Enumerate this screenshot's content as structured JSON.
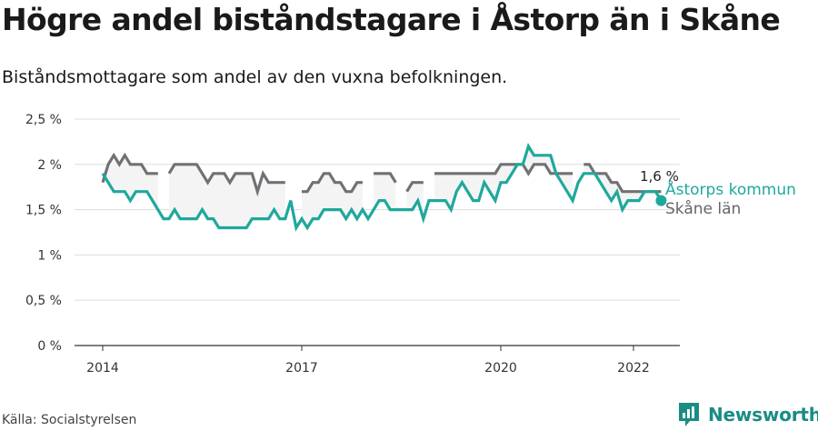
{
  "title": "Högre andel biståndstagare i Åstorp än i Skåne",
  "subtitle": "Biståndsmottagare som andel av den vuxna befolkningen.",
  "source": "Källa: Socialstyrelsen",
  "brand": "Newsworthy",
  "colors": {
    "astorp": "#1fa89c",
    "skane": "#717175",
    "band": "#eeeeee",
    "grid": "#dddddd",
    "brand": "#1a8c85"
  },
  "chart_data": {
    "type": "line",
    "title": "Högre andel biståndstagare i Åstorp än i Skåne",
    "subtitle": "Biståndsmottagare som andel av den vuxna befolkningen.",
    "ylim": [
      0,
      2.5
    ],
    "yticks": [
      0,
      0.5,
      1,
      1.5,
      2,
      2.5
    ],
    "ytick_labels": [
      "0 %",
      "0,5 %",
      "1 %",
      "1,5 %",
      "2 %",
      "2,5 %"
    ],
    "xticks": [
      "2014-01",
      "2017-01",
      "2020-01",
      "2022-01"
    ],
    "xtick_labels": [
      "2014",
      "2017",
      "2020",
      "2022"
    ],
    "last_value_label": "1,6 %",
    "grid": true,
    "legend": "direct labels at line ends",
    "series": [
      {
        "name": "Åstorps kommun",
        "points": [
          [
            "2014-01",
            1.9
          ],
          [
            "2014-02",
            1.8
          ],
          [
            "2014-03",
            1.7
          ],
          [
            "2014-04",
            1.7
          ],
          [
            "2014-05",
            1.7
          ],
          [
            "2014-06",
            1.6
          ],
          [
            "2014-07",
            1.7
          ],
          [
            "2014-08",
            1.7
          ],
          [
            "2014-09",
            1.7
          ],
          [
            "2014-10",
            1.6
          ],
          [
            "2014-11",
            1.5
          ],
          [
            "2014-12",
            1.4
          ],
          [
            "2015-01",
            1.4
          ],
          [
            "2015-02",
            1.5
          ],
          [
            "2015-03",
            1.4
          ],
          [
            "2015-04",
            1.4
          ],
          [
            "2015-05",
            1.4
          ],
          [
            "2015-06",
            1.4
          ],
          [
            "2015-07",
            1.5
          ],
          [
            "2015-08",
            1.4
          ],
          [
            "2015-09",
            1.4
          ],
          [
            "2015-10",
            1.3
          ],
          [
            "2015-11",
            1.3
          ],
          [
            "2015-12",
            1.3
          ],
          [
            "2016-01",
            1.3
          ],
          [
            "2016-02",
            1.3
          ],
          [
            "2016-03",
            1.3
          ],
          [
            "2016-04",
            1.4
          ],
          [
            "2016-05",
            1.4
          ],
          [
            "2016-06",
            1.4
          ],
          [
            "2016-07",
            1.4
          ],
          [
            "2016-08",
            1.5
          ],
          [
            "2016-09",
            1.4
          ],
          [
            "2016-10",
            1.4
          ],
          [
            "2016-11",
            1.6
          ],
          [
            "2016-12",
            1.3
          ],
          [
            "2017-01",
            1.4
          ],
          [
            "2017-02",
            1.3
          ],
          [
            "2017-03",
            1.4
          ],
          [
            "2017-04",
            1.4
          ],
          [
            "2017-05",
            1.5
          ],
          [
            "2017-06",
            1.5
          ],
          [
            "2017-07",
            1.5
          ],
          [
            "2017-08",
            1.5
          ],
          [
            "2017-09",
            1.4
          ],
          [
            "2017-10",
            1.5
          ],
          [
            "2017-11",
            1.4
          ],
          [
            "2017-12",
            1.5
          ],
          [
            "2018-01",
            1.4
          ],
          [
            "2018-02",
            1.5
          ],
          [
            "2018-03",
            1.6
          ],
          [
            "2018-04",
            1.6
          ],
          [
            "2018-05",
            1.5
          ],
          [
            "2018-06",
            1.5
          ],
          [
            "2018-07",
            1.5
          ],
          [
            "2018-08",
            1.5
          ],
          [
            "2018-09",
            1.5
          ],
          [
            "2018-10",
            1.6
          ],
          [
            "2018-11",
            1.4
          ],
          [
            "2018-12",
            1.6
          ],
          [
            "2019-01",
            1.6
          ],
          [
            "2019-02",
            1.6
          ],
          [
            "2019-03",
            1.6
          ],
          [
            "2019-04",
            1.5
          ],
          [
            "2019-05",
            1.7
          ],
          [
            "2019-06",
            1.8
          ],
          [
            "2019-07",
            1.7
          ],
          [
            "2019-08",
            1.6
          ],
          [
            "2019-09",
            1.6
          ],
          [
            "2019-10",
            1.8
          ],
          [
            "2019-11",
            1.7
          ],
          [
            "2019-12",
            1.6
          ],
          [
            "2020-01",
            1.8
          ],
          [
            "2020-02",
            1.8
          ],
          [
            "2020-03",
            1.9
          ],
          [
            "2020-04",
            2.0
          ],
          [
            "2020-05",
            2.0
          ],
          [
            "2020-06",
            2.2
          ],
          [
            "2020-07",
            2.1
          ],
          [
            "2020-08",
            2.1
          ],
          [
            "2020-09",
            2.1
          ],
          [
            "2020-10",
            2.1
          ],
          [
            "2020-11",
            1.9
          ],
          [
            "2020-12",
            1.8
          ],
          [
            "2021-01",
            1.7
          ],
          [
            "2021-02",
            1.6
          ],
          [
            "2021-03",
            1.8
          ],
          [
            "2021-04",
            1.9
          ],
          [
            "2021-05",
            1.9
          ],
          [
            "2021-06",
            1.9
          ],
          [
            "2021-07",
            1.8
          ],
          [
            "2021-08",
            1.7
          ],
          [
            "2021-09",
            1.6
          ],
          [
            "2021-10",
            1.7
          ],
          [
            "2021-11",
            1.5
          ],
          [
            "2021-12",
            1.6
          ],
          [
            "2022-01",
            1.6
          ],
          [
            "2022-02",
            1.6
          ],
          [
            "2022-03",
            1.7
          ],
          [
            "2022-04",
            1.7
          ],
          [
            "2022-05",
            1.7
          ],
          [
            "2022-06",
            1.6
          ]
        ]
      },
      {
        "name": "Skåne län",
        "points": [
          [
            "2014-01",
            1.8
          ],
          [
            "2014-02",
            2.0
          ],
          [
            "2014-03",
            2.1
          ],
          [
            "2014-04",
            2.0
          ],
          [
            "2014-05",
            2.1
          ],
          [
            "2014-06",
            2.0
          ],
          [
            "2014-07",
            2.0
          ],
          [
            "2014-08",
            2.0
          ],
          [
            "2014-09",
            1.9
          ],
          [
            "2014-10",
            1.9
          ],
          [
            "2014-11",
            1.9
          ],
          [
            "2014-12",
            null
          ],
          [
            "2015-01",
            1.9
          ],
          [
            "2015-02",
            2.0
          ],
          [
            "2015-03",
            2.0
          ],
          [
            "2015-04",
            2.0
          ],
          [
            "2015-05",
            2.0
          ],
          [
            "2015-06",
            2.0
          ],
          [
            "2015-07",
            1.9
          ],
          [
            "2015-08",
            1.8
          ],
          [
            "2015-09",
            1.9
          ],
          [
            "2015-10",
            1.9
          ],
          [
            "2015-11",
            1.9
          ],
          [
            "2015-12",
            1.8
          ],
          [
            "2016-01",
            1.9
          ],
          [
            "2016-02",
            1.9
          ],
          [
            "2016-03",
            1.9
          ],
          [
            "2016-04",
            1.9
          ],
          [
            "2016-05",
            1.7
          ],
          [
            "2016-06",
            1.9
          ],
          [
            "2016-07",
            1.8
          ],
          [
            "2016-08",
            1.8
          ],
          [
            "2016-09",
            1.8
          ],
          [
            "2016-10",
            1.8
          ],
          [
            "2016-11",
            null
          ],
          [
            "2016-12",
            null
          ],
          [
            "2017-01",
            1.7
          ],
          [
            "2017-02",
            1.7
          ],
          [
            "2017-03",
            1.8
          ],
          [
            "2017-04",
            1.8
          ],
          [
            "2017-05",
            1.9
          ],
          [
            "2017-06",
            1.9
          ],
          [
            "2017-07",
            1.8
          ],
          [
            "2017-08",
            1.8
          ],
          [
            "2017-09",
            1.7
          ],
          [
            "2017-10",
            1.7
          ],
          [
            "2017-11",
            1.8
          ],
          [
            "2017-12",
            1.8
          ],
          [
            "2018-01",
            null
          ],
          [
            "2018-02",
            1.9
          ],
          [
            "2018-03",
            1.9
          ],
          [
            "2018-04",
            1.9
          ],
          [
            "2018-05",
            1.9
          ],
          [
            "2018-06",
            1.8
          ],
          [
            "2018-07",
            null
          ],
          [
            "2018-08",
            1.7
          ],
          [
            "2018-09",
            1.8
          ],
          [
            "2018-10",
            1.8
          ],
          [
            "2018-11",
            1.8
          ],
          [
            "2018-12",
            null
          ],
          [
            "2019-01",
            1.9
          ],
          [
            "2019-02",
            1.9
          ],
          [
            "2019-03",
            1.9
          ],
          [
            "2019-04",
            1.9
          ],
          [
            "2019-05",
            1.9
          ],
          [
            "2019-06",
            1.9
          ],
          [
            "2019-07",
            1.9
          ],
          [
            "2019-08",
            1.9
          ],
          [
            "2019-09",
            1.9
          ],
          [
            "2019-10",
            1.9
          ],
          [
            "2019-11",
            1.9
          ],
          [
            "2019-12",
            1.9
          ],
          [
            "2020-01",
            2.0
          ],
          [
            "2020-02",
            2.0
          ],
          [
            "2020-03",
            2.0
          ],
          [
            "2020-04",
            2.0
          ],
          [
            "2020-05",
            2.0
          ],
          [
            "2020-06",
            1.9
          ],
          [
            "2020-07",
            2.0
          ],
          [
            "2020-08",
            2.0
          ],
          [
            "2020-09",
            2.0
          ],
          [
            "2020-10",
            1.9
          ],
          [
            "2020-11",
            1.9
          ],
          [
            "2020-12",
            1.9
          ],
          [
            "2021-01",
            1.9
          ],
          [
            "2021-02",
            1.9
          ],
          [
            "2021-03",
            null
          ],
          [
            "2021-04",
            2.0
          ],
          [
            "2021-05",
            2.0
          ],
          [
            "2021-06",
            1.9
          ],
          [
            "2021-07",
            1.9
          ],
          [
            "2021-08",
            1.9
          ],
          [
            "2021-09",
            1.8
          ],
          [
            "2021-10",
            1.8
          ],
          [
            "2021-11",
            1.7
          ],
          [
            "2021-12",
            1.7
          ],
          [
            "2022-01",
            1.7
          ],
          [
            "2022-02",
            1.7
          ],
          [
            "2022-03",
            1.7
          ],
          [
            "2022-04",
            1.7
          ],
          [
            "2022-05",
            1.7
          ],
          [
            "2022-06",
            1.7
          ]
        ]
      }
    ]
  }
}
